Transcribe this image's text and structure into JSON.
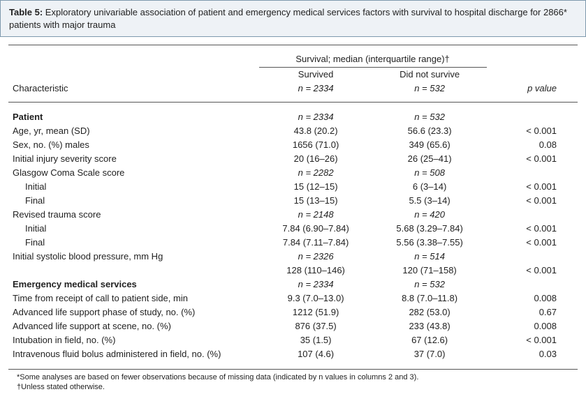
{
  "caption": {
    "label": "Table 5:",
    "text": "Exploratory univariable association of patient and emergency medical services factors with survival to hospital discharge for 2866* patients with major trauma"
  },
  "head": {
    "span": "Survival; median (interquartile range)†",
    "char": "Characteristic",
    "surv": "Survived",
    "surv_n": "n = 2334",
    "not": "Did not survive",
    "not_n": "n = 532",
    "p": "p value"
  },
  "rows": [
    {
      "t": "section",
      "label": "Patient",
      "s": "n = 2334",
      "d": "n = 532"
    },
    {
      "t": "row",
      "label": "Age, yr, mean (SD)",
      "s": "43.8  (20.2)",
      "d": "56.6  (23.3)",
      "p": "< 0.001"
    },
    {
      "t": "row",
      "label": "Sex, no. (%) males",
      "s": "1656  (71.0)",
      "d": "349  (65.6)",
      "p": "0.08"
    },
    {
      "t": "row",
      "label": "Initial injury severity score",
      "s": "20  (16–26)",
      "d": "26  (25–41)",
      "p": "< 0.001"
    },
    {
      "t": "subhead",
      "label": "Glasgow Coma Scale score",
      "s": "n = 2282",
      "d": "n = 508"
    },
    {
      "t": "row",
      "indent": true,
      "label": "Initial",
      "s": "15  (12–15)",
      "d": "6   (3–14)",
      "p": "< 0.001"
    },
    {
      "t": "row",
      "indent": true,
      "label": "Final",
      "s": "15  (13–15)",
      "d": "5.5  (3–14)",
      "p": "< 0.001"
    },
    {
      "t": "subhead",
      "label": "Revised trauma score",
      "s": "n = 2148",
      "d": "n = 420"
    },
    {
      "t": "row",
      "indent": true,
      "label": "Initial",
      "s": "7.84  (6.90–7.84)",
      "d": "5.68  (3.29–7.84)",
      "p": "< 0.001"
    },
    {
      "t": "row",
      "indent": true,
      "label": "Final",
      "s": "7.84  (7.11–7.84)",
      "d": "5.56  (3.38–7.55)",
      "p": "< 0.001"
    },
    {
      "t": "subhead",
      "label": "Initial systolic blood pressure, mm Hg",
      "s": "n = 2326",
      "d": "n = 514"
    },
    {
      "t": "row",
      "label": "",
      "s": "128  (110–146)",
      "d": "120  (71–158)",
      "p": "< 0.001"
    },
    {
      "t": "section",
      "label": "Emergency medical services",
      "s": "n = 2334",
      "d": "n = 532"
    },
    {
      "t": "row",
      "label": "Time from receipt of call to patient side, min",
      "s": "9.3  (7.0–13.0)",
      "d": "8.8  (7.0–11.8)",
      "p": "0.008"
    },
    {
      "t": "row",
      "label": "Advanced life support phase of study, no. (%)",
      "s": "1212  (51.9)",
      "d": "282  (53.0)",
      "p": "0.67"
    },
    {
      "t": "row",
      "label": "Advanced life support at scene, no. (%)",
      "s": "876  (37.5)",
      "d": "233  (43.8)",
      "p": "0.008"
    },
    {
      "t": "row",
      "label": "Intubation in field, no. (%)",
      "s": "35   (1.5)",
      "d": "67  (12.6)",
      "p": "< 0.001"
    },
    {
      "t": "row",
      "label": "Intravenous fluid bolus administered in field, no. (%)",
      "s": "107   (4.6)",
      "d": "37   (7.0)",
      "p": "0.03"
    }
  ],
  "foot": {
    "l1": "*Some analyses are based on fewer observations because of missing data (indicated by n values in columns 2 and 3).",
    "l2": "†Unless stated otherwise."
  }
}
